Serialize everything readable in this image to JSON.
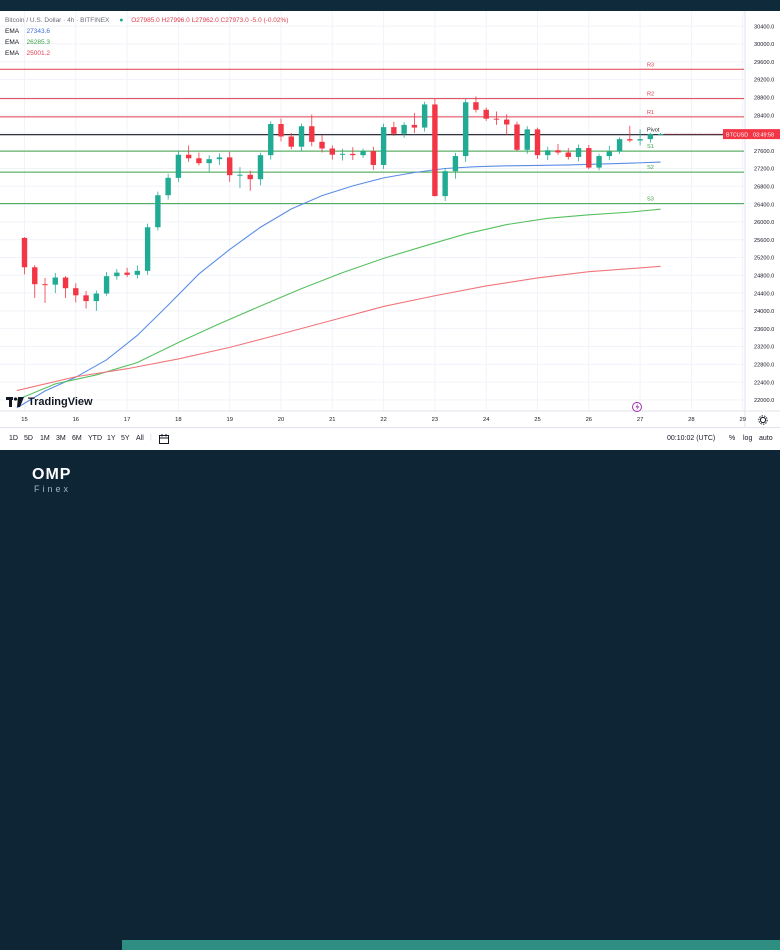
{
  "header": {
    "symbol": "Bitcoin / U.S. Dollar · 4h · BITFINEX",
    "ohlc": "O27985.0 H27996.0 L27962.0 C27973.0 -5.0 (-0.02%)",
    "status_dot": "●"
  },
  "indicators": [
    {
      "name": "EMA",
      "value": "27343.6",
      "color": "#5b8de6"
    },
    {
      "name": "EMA",
      "value": "26285.3",
      "color": "#55c05f"
    },
    {
      "name": "EMA",
      "value": "25001.2",
      "color": "#f0767c"
    }
  ],
  "price_tag": {
    "symbol": "BTCUSD",
    "time": "03:49:58"
  },
  "toolbar": {
    "timeframes": [
      "1D",
      "5D",
      "1M",
      "3M",
      "6M",
      "YTD",
      "1Y",
      "5Y",
      "All"
    ],
    "time": "00:10:02 (UTC)",
    "percent": "%",
    "log": "log",
    "auto": "auto"
  },
  "branding": {
    "tv": "TradingView",
    "company": "OMP",
    "company_sub": "Finex"
  },
  "colors": {
    "up": "#22ab94",
    "down": "#f23645",
    "resistance": "#e03e4e",
    "support": "#3aa046",
    "pivot": "#131722"
  },
  "chart_data": {
    "type": "candlestick",
    "title": "Bitcoin / U.S. Dollar · 4h · BITFINEX",
    "x_ticks": [
      "15",
      "16",
      "17",
      "18",
      "19",
      "20",
      "21",
      "22",
      "23",
      "24",
      "25",
      "26",
      "27",
      "28",
      "29"
    ],
    "y_ticks": [
      "22000.0",
      "22400.0",
      "22800.0",
      "23200.0",
      "23600.0",
      "24000.0",
      "24400.0",
      "24800.0",
      "25200.0",
      "25600.0",
      "26000.0",
      "26400.0",
      "26800.0",
      "27200.0",
      "27600.0",
      "28000.0",
      "28400.0",
      "28800.0",
      "29200.0",
      "29600.0",
      "30000.0",
      "30400.0"
    ],
    "ylim": [
      21750,
      30740
    ],
    "pivot_levels": [
      {
        "label": "R3",
        "price": 29430,
        "kind": "resistance"
      },
      {
        "label": "R2",
        "price": 28770,
        "kind": "resistance"
      },
      {
        "label": "R1",
        "price": 28360,
        "kind": "resistance"
      },
      {
        "label": "Pivot",
        "price": 27960,
        "kind": "pivot"
      },
      {
        "label": "S1",
        "price": 27590,
        "kind": "support"
      },
      {
        "label": "S2",
        "price": 27120,
        "kind": "support"
      },
      {
        "label": "S3",
        "price": 26410,
        "kind": "support"
      }
    ],
    "candles": [
      [
        15.0,
        25640,
        25660,
        24820,
        24980
      ],
      [
        15.2,
        24980,
        25030,
        24290,
        24600
      ],
      [
        15.4,
        24600,
        24740,
        24180,
        24590
      ],
      [
        15.6,
        24590,
        24850,
        24400,
        24750
      ],
      [
        15.8,
        24750,
        24780,
        24290,
        24510
      ],
      [
        16.0,
        24510,
        24620,
        24190,
        24350
      ],
      [
        16.2,
        24350,
        24450,
        24050,
        24220
      ],
      [
        16.4,
        24220,
        24460,
        24000,
        24390
      ],
      [
        16.6,
        24390,
        24870,
        24340,
        24780
      ],
      [
        16.8,
        24780,
        24940,
        24700,
        24860
      ],
      [
        17.0,
        24860,
        24970,
        24760,
        24810
      ],
      [
        17.2,
        24810,
        25020,
        24730,
        24900
      ],
      [
        17.4,
        24900,
        25960,
        24810,
        25880
      ],
      [
        17.6,
        25880,
        26680,
        25810,
        26600
      ],
      [
        17.8,
        26600,
        27080,
        26500,
        26990
      ],
      [
        18.0,
        26990,
        27600,
        26900,
        27510
      ],
      [
        18.2,
        27510,
        27720,
        27350,
        27430
      ],
      [
        18.4,
        27430,
        27560,
        27270,
        27320
      ],
      [
        18.6,
        27320,
        27500,
        27120,
        27410
      ],
      [
        18.8,
        27410,
        27540,
        27280,
        27450
      ],
      [
        19.0,
        27450,
        27570,
        26900,
        27050
      ],
      [
        19.2,
        27050,
        27230,
        26760,
        27060
      ],
      [
        19.4,
        27060,
        27150,
        26700,
        26960
      ],
      [
        19.6,
        26960,
        27550,
        26820,
        27500
      ],
      [
        19.8,
        27500,
        28260,
        27400,
        28200
      ],
      [
        20.0,
        28200,
        28320,
        27810,
        27920
      ],
      [
        20.2,
        27920,
        28000,
        27630,
        27690
      ],
      [
        20.4,
        27690,
        28210,
        27580,
        28150
      ],
      [
        20.6,
        28150,
        28410,
        27700,
        27800
      ],
      [
        20.8,
        27800,
        27950,
        27560,
        27650
      ],
      [
        21.0,
        27650,
        27720,
        27400,
        27510
      ],
      [
        21.2,
        27510,
        27640,
        27380,
        27530
      ],
      [
        21.4,
        27530,
        27680,
        27390,
        27500
      ],
      [
        21.6,
        27500,
        27650,
        27440,
        27590
      ],
      [
        21.8,
        27590,
        27690,
        27170,
        27280
      ],
      [
        22.0,
        27280,
        28210,
        27190,
        28130
      ],
      [
        22.2,
        28130,
        28250,
        27930,
        27980
      ],
      [
        22.4,
        27980,
        28240,
        27890,
        28180
      ],
      [
        22.6,
        28180,
        28450,
        28000,
        28120
      ],
      [
        22.8,
        28120,
        28700,
        28030,
        28640
      ],
      [
        23.0,
        28640,
        28780,
        26570,
        26580
      ],
      [
        23.2,
        26580,
        27210,
        26470,
        27140
      ],
      [
        23.4,
        27140,
        27550,
        26970,
        27480
      ],
      [
        23.6,
        27480,
        28760,
        27350,
        28690
      ],
      [
        23.8,
        28690,
        28820,
        28460,
        28520
      ],
      [
        24.0,
        28520,
        28570,
        28270,
        28320
      ],
      [
        24.2,
        28320,
        28480,
        28180,
        28300
      ],
      [
        24.4,
        28300,
        28420,
        27960,
        28190
      ],
      [
        24.6,
        28190,
        28250,
        27590,
        27620
      ],
      [
        24.8,
        27620,
        28150,
        27530,
        28080
      ],
      [
        25.0,
        28080,
        28120,
        27420,
        27500
      ],
      [
        25.2,
        27500,
        27690,
        27390,
        27610
      ],
      [
        25.4,
        27610,
        27750,
        27510,
        27560
      ],
      [
        25.6,
        27560,
        27660,
        27400,
        27460
      ],
      [
        25.8,
        27460,
        27740,
        27360,
        27660
      ],
      [
        26.0,
        27660,
        27730,
        27190,
        27220
      ],
      [
        26.2,
        27220,
        27530,
        27160,
        27480
      ],
      [
        26.4,
        27480,
        27710,
        27390,
        27580
      ],
      [
        26.6,
        27580,
        27900,
        27530,
        27860
      ],
      [
        26.8,
        27860,
        28160,
        27790,
        27830
      ],
      [
        27.0,
        27830,
        28080,
        27720,
        27860
      ],
      [
        27.2,
        27860,
        28000,
        27780,
        27970
      ],
      [
        27.4,
        27970,
        27996,
        27962,
        27973
      ]
    ],
    "series": [
      {
        "name": "EMA",
        "value_label": "27343.6",
        "color": "#5b8de6",
        "points": [
          [
            14.85,
            21820
          ],
          [
            15.4,
            22200
          ],
          [
            16,
            22510
          ],
          [
            16.6,
            22900
          ],
          [
            17.2,
            23450
          ],
          [
            17.8,
            24130
          ],
          [
            18.4,
            24830
          ],
          [
            19,
            25380
          ],
          [
            19.6,
            25880
          ],
          [
            20.2,
            26290
          ],
          [
            20.8,
            26590
          ],
          [
            21.4,
            26810
          ],
          [
            22,
            26990
          ],
          [
            22.6,
            27110
          ],
          [
            23.2,
            27200
          ],
          [
            23.8,
            27240
          ],
          [
            24.4,
            27260
          ],
          [
            25,
            27270
          ],
          [
            25.6,
            27280
          ],
          [
            26.2,
            27300
          ],
          [
            26.8,
            27320
          ],
          [
            27.4,
            27344
          ]
        ]
      },
      {
        "name": "EMA",
        "value_label": "26285.3",
        "color": "#55c05f",
        "points": [
          [
            14.85,
            22000
          ],
          [
            15.6,
            22360
          ],
          [
            16.4,
            22560
          ],
          [
            17.2,
            22840
          ],
          [
            18,
            23290
          ],
          [
            18.8,
            23710
          ],
          [
            19.6,
            24110
          ],
          [
            20.4,
            24500
          ],
          [
            21.2,
            24860
          ],
          [
            22,
            25180
          ],
          [
            22.8,
            25460
          ],
          [
            23.6,
            25730
          ],
          [
            24.4,
            25940
          ],
          [
            25.2,
            26080
          ],
          [
            26,
            26160
          ],
          [
            26.8,
            26220
          ],
          [
            27.4,
            26285
          ]
        ]
      },
      {
        "name": "EMA",
        "value_label": "25001.2",
        "color": "#f0767c",
        "points": [
          [
            14.85,
            22210
          ],
          [
            16,
            22520
          ],
          [
            17,
            22700
          ],
          [
            18,
            22920
          ],
          [
            19,
            23180
          ],
          [
            20,
            23480
          ],
          [
            21,
            23790
          ],
          [
            22,
            24100
          ],
          [
            23,
            24340
          ],
          [
            24,
            24560
          ],
          [
            25,
            24740
          ],
          [
            26,
            24880
          ],
          [
            27.4,
            25001
          ]
        ]
      }
    ]
  }
}
